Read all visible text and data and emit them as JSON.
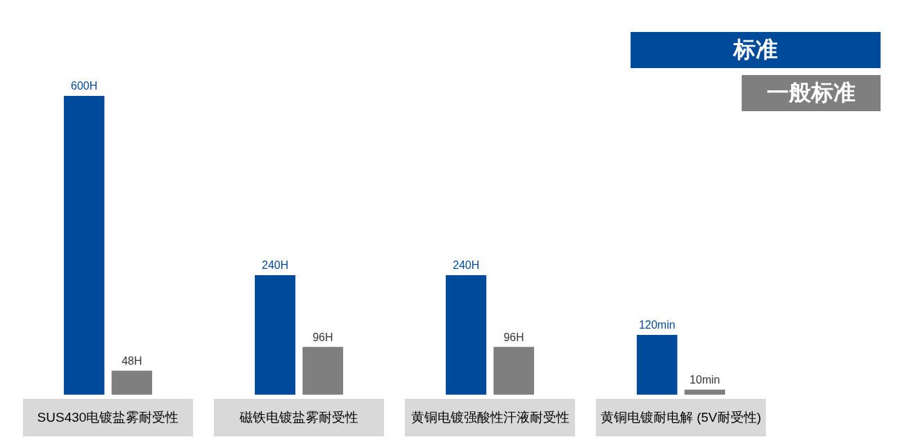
{
  "chart_data": {
    "type": "bar",
    "categories": [
      "SUS430电镀盐雾耐受性",
      "磁铁电镀盐雾耐受性",
      "黄铜电镀强酸性汗液耐受性",
      "黄铜电镀耐电解 (5V耐受性)"
    ],
    "series": [
      {
        "name": "标准",
        "color": "#004a9c",
        "values": [
          600,
          240,
          240,
          120
        ],
        "value_labels": [
          "600H",
          "240H",
          "240H",
          "120min"
        ]
      },
      {
        "name": "一般标准",
        "color": "#7f7f7f",
        "values": [
          48,
          96,
          96,
          10
        ],
        "value_labels": [
          "48H",
          "96H",
          "96H",
          "10min"
        ]
      }
    ],
    "legend": "top right",
    "grid": false,
    "tick_labels": "x"
  }
}
